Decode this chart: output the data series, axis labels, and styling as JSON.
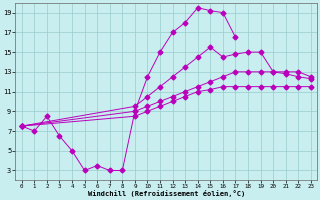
{
  "xlabel": "Windchill (Refroidissement éolien,°C)",
  "bg_color": "#c8eef0",
  "line_color": "#bb00bb",
  "grid_color": "#99cccc",
  "xlim": [
    -0.5,
    23.5
  ],
  "ylim": [
    2.0,
    20.0
  ],
  "xticks": [
    0,
    1,
    2,
    3,
    4,
    5,
    6,
    7,
    8,
    9,
    10,
    11,
    12,
    13,
    14,
    15,
    16,
    17,
    18,
    19,
    20,
    21,
    22,
    23
  ],
  "yticks": [
    3,
    5,
    7,
    9,
    11,
    13,
    15,
    17,
    19
  ],
  "series": [
    {
      "x": [
        0,
        1,
        2,
        3,
        4,
        5,
        6,
        7,
        8,
        9,
        10,
        11,
        12,
        13,
        14,
        15,
        16,
        17
      ],
      "y": [
        7.5,
        7.0,
        8.5,
        6.5,
        5.0,
        3.0,
        3.5,
        3.0,
        3.0,
        9.0,
        12.5,
        15.0,
        17.0,
        18.0,
        19.5,
        19.2,
        19.0,
        16.5
      ],
      "markersize": 2.5
    },
    {
      "x": [
        0,
        9,
        10,
        11,
        12,
        13,
        14,
        15,
        16,
        17,
        18,
        19,
        20,
        21,
        22,
        23
      ],
      "y": [
        7.5,
        9.5,
        10.5,
        11.5,
        12.5,
        13.5,
        14.5,
        15.5,
        14.5,
        14.8,
        15.0,
        15.0,
        13.0,
        13.0,
        13.0,
        12.5
      ],
      "markersize": 2.5
    },
    {
      "x": [
        0,
        9,
        10,
        11,
        12,
        13,
        14,
        15,
        16,
        17,
        18,
        19,
        20,
        21,
        22,
        23
      ],
      "y": [
        7.5,
        9.0,
        9.5,
        10.0,
        10.5,
        11.0,
        11.5,
        12.0,
        12.5,
        13.0,
        13.0,
        13.0,
        13.0,
        12.8,
        12.5,
        12.3
      ],
      "markersize": 2.5
    },
    {
      "x": [
        0,
        9,
        10,
        11,
        12,
        13,
        14,
        15,
        16,
        17,
        18,
        19,
        20,
        21,
        22,
        23
      ],
      "y": [
        7.5,
        8.5,
        9.0,
        9.5,
        10.0,
        10.5,
        11.0,
        11.2,
        11.5,
        11.5,
        11.5,
        11.5,
        11.5,
        11.5,
        11.5,
        11.5
      ],
      "markersize": 2.5
    }
  ]
}
